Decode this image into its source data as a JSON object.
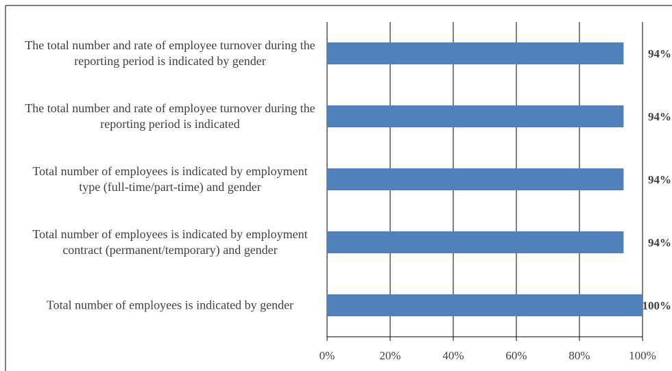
{
  "chart_data": {
    "type": "barh",
    "categories": [
      "The total number and rate of employee turnover during the reporting period is indicated by gender",
      "The total number and rate of employee turnover during the reporting period is indicated",
      "Total number of employees is indicated by employment type (full-time/part-time) and gender",
      "Total number of employees is indicated by employment contract (permanent/temporary) and gender",
      "Total number of employees is indicated by gender"
    ],
    "values": [
      94,
      94,
      94,
      94,
      100
    ],
    "value_labels": [
      "94%",
      "94%",
      "94%",
      "94%",
      "100%"
    ],
    "color": "#4f81bd",
    "xlim": [
      0,
      100
    ],
    "xticks": [
      {
        "value": 0,
        "label": "0%"
      },
      {
        "value": 20,
        "label": "20%"
      },
      {
        "value": 40,
        "label": "40%"
      },
      {
        "value": 60,
        "label": "60%"
      },
      {
        "value": 80,
        "label": "80%"
      },
      {
        "value": 100,
        "label": "100%"
      }
    ],
    "grid": true
  }
}
